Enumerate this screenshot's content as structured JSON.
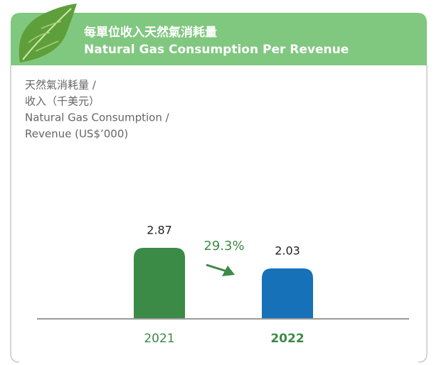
{
  "chart_data": {
    "type": "bar",
    "title": [
      "每單位收入天然氣消耗量",
      "Natural Gas Consumption Per Revenue"
    ],
    "ylabel": [
      "天然氣消耗量 /",
      "收入（千美元）",
      "Natural Gas Consumption /",
      "Revenue (US$’000)"
    ],
    "categories": [
      "2021",
      "2022"
    ],
    "values": [
      2.87,
      2.03
    ],
    "colors": [
      "#3b8a46",
      "#1771b9"
    ],
    "annotation": "29.3%"
  }
}
